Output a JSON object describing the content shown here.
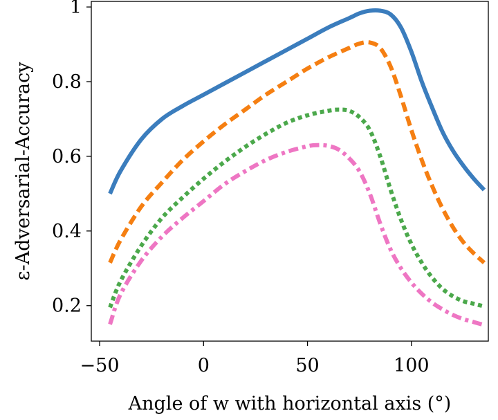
{
  "chart_data": {
    "type": "line",
    "title": "",
    "xlabel": "Angle of w with horizontal axis (°)",
    "ylabel": "ε-Adversarial-Accuracy",
    "xlim": [
      -54,
      137
    ],
    "ylim": [
      0.105,
      1.015
    ],
    "xticks": [
      -50,
      0,
      50,
      100
    ],
    "xtick_labels": [
      "−50",
      "0",
      "50",
      "100"
    ],
    "yticks": [
      0.2,
      0.4,
      0.6,
      0.8,
      1.0
    ],
    "ytick_labels": [
      "0.2",
      "0.4",
      "0.6",
      "0.8",
      "1"
    ],
    "grid": false,
    "legend": "none",
    "series": [
      {
        "style": "solid",
        "color": "#3b7dbd",
        "x": [
          -45,
          -40,
          -30,
          -20,
          -10,
          0,
          10,
          20,
          30,
          40,
          50,
          60,
          70,
          75,
          80,
          85,
          90,
          95,
          100,
          105,
          110,
          115,
          120,
          125,
          130,
          135
        ],
        "y": [
          0.5,
          0.56,
          0.645,
          0.7,
          0.735,
          0.765,
          0.795,
          0.825,
          0.855,
          0.885,
          0.915,
          0.945,
          0.97,
          0.983,
          0.99,
          0.99,
          0.98,
          0.945,
          0.88,
          0.8,
          0.73,
          0.665,
          0.615,
          0.575,
          0.54,
          0.51
        ]
      },
      {
        "style": "dashed",
        "color": "#f57f12",
        "x": [
          -45,
          -40,
          -30,
          -20,
          -10,
          0,
          10,
          20,
          30,
          40,
          50,
          60,
          70,
          75,
          80,
          85,
          90,
          95,
          100,
          105,
          110,
          115,
          120,
          125,
          130,
          135
        ],
        "y": [
          0.315,
          0.375,
          0.465,
          0.53,
          0.59,
          0.64,
          0.685,
          0.725,
          0.765,
          0.8,
          0.835,
          0.865,
          0.89,
          0.902,
          0.905,
          0.89,
          0.84,
          0.76,
          0.67,
          0.59,
          0.52,
          0.46,
          0.41,
          0.37,
          0.34,
          0.315
        ]
      },
      {
        "style": "dotted",
        "color": "#4ba84b",
        "x": [
          -45,
          -40,
          -30,
          -20,
          -10,
          0,
          10,
          20,
          30,
          40,
          50,
          60,
          65,
          70,
          75,
          80,
          85,
          90,
          95,
          100,
          105,
          110,
          115,
          120,
          125,
          130,
          135
        ],
        "y": [
          0.195,
          0.265,
          0.36,
          0.435,
          0.49,
          0.54,
          0.585,
          0.625,
          0.66,
          0.69,
          0.71,
          0.722,
          0.725,
          0.722,
          0.705,
          0.67,
          0.6,
          0.51,
          0.43,
          0.365,
          0.315,
          0.275,
          0.245,
          0.225,
          0.212,
          0.205,
          0.198
        ]
      },
      {
        "style": "dashdot",
        "color": "#ee76c3",
        "x": [
          -45,
          -40,
          -30,
          -20,
          -10,
          0,
          10,
          20,
          30,
          40,
          50,
          55,
          60,
          65,
          70,
          75,
          80,
          85,
          90,
          95,
          100,
          105,
          110,
          115,
          120,
          125,
          130,
          135
        ],
        "y": [
          0.15,
          0.23,
          0.32,
          0.385,
          0.435,
          0.48,
          0.525,
          0.56,
          0.59,
          0.612,
          0.627,
          0.63,
          0.628,
          0.618,
          0.595,
          0.56,
          0.5,
          0.42,
          0.35,
          0.3,
          0.262,
          0.232,
          0.208,
          0.19,
          0.175,
          0.164,
          0.156,
          0.148
        ]
      }
    ]
  }
}
